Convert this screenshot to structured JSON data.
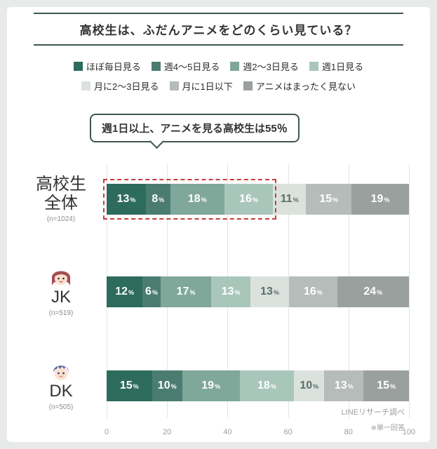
{
  "page": {
    "title": "高校生は、ふだんアニメをどのくらい見ている？",
    "source": "LINEリサーチ調べ",
    "note": "※単一回答",
    "percent_sign": "%"
  },
  "callout": {
    "text": "週1日以上、アニメを見る高校生は55％"
  },
  "legend_rows": [
    [
      0,
      1,
      2,
      3
    ],
    [
      4,
      5,
      6
    ]
  ],
  "chart_data": {
    "type": "bar",
    "stacked": true,
    "orientation": "horizontal",
    "title": "高校生は、ふだんアニメをどのくらい見ている？",
    "categories": [
      {
        "label": "ほぼ毎日見る",
        "color": "#2d6b5d",
        "text": "#ffffff"
      },
      {
        "label": "週4〜5日見る",
        "color": "#4a7d6f",
        "text": "#ffffff"
      },
      {
        "label": "週2〜3日見る",
        "color": "#7fa79a",
        "text": "#ffffff"
      },
      {
        "label": "週1日見る",
        "color": "#a9c6bb",
        "text": "#ffffff"
      },
      {
        "label": "月に2〜3日見る",
        "color": "#dbe2de",
        "text": "#5b6f69"
      },
      {
        "label": "月に1日以下",
        "color": "#b6bcb9",
        "text": "#ffffff"
      },
      {
        "label": "アニメはまったく見ない",
        "color": "#9aa09d",
        "text": "#ffffff"
      }
    ],
    "groups": [
      {
        "label": "高校生全体",
        "n": "(n=1024)",
        "icon": null,
        "values": [
          13,
          8,
          18,
          16,
          11,
          15,
          19
        ]
      },
      {
        "label": "JK",
        "n": "(n=519)",
        "icon": "jk",
        "values": [
          12,
          6,
          17,
          13,
          13,
          16,
          24
        ]
      },
      {
        "label": "DK",
        "n": "(n=505)",
        "icon": "dk",
        "values": [
          15,
          10,
          19,
          18,
          10,
          13,
          15
        ]
      }
    ],
    "x_ticks": [
      0,
      20,
      40,
      60,
      80,
      100
    ],
    "xlim": [
      0,
      100
    ],
    "legend_position": "top",
    "highlight": {
      "group": 0,
      "through_value": 55,
      "color": "#c63d3d"
    }
  }
}
